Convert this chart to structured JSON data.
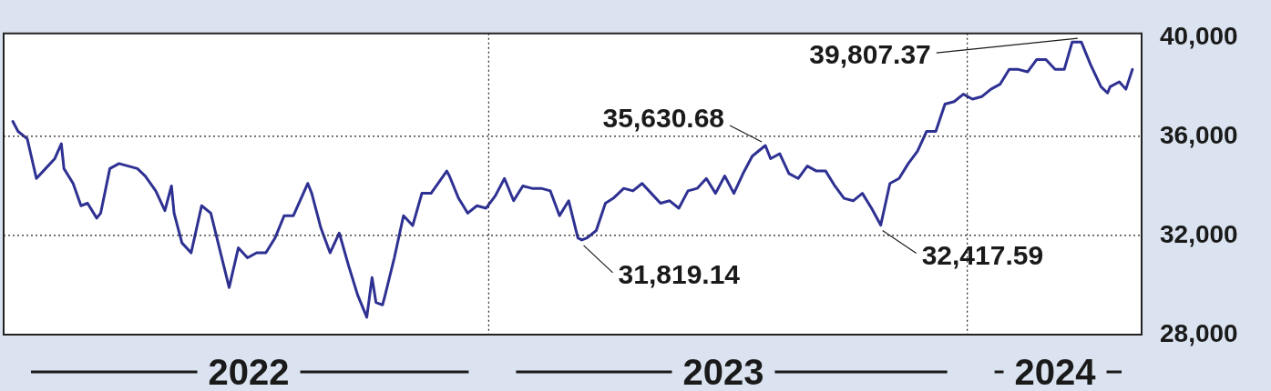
{
  "chart_data": {
    "type": "line",
    "x": [
      "2022-01-03",
      "2022-01-07",
      "2022-01-14",
      "2022-01-21",
      "2022-01-28",
      "2022-02-04",
      "2022-02-09",
      "2022-02-11",
      "2022-02-18",
      "2022-02-24",
      "2022-03-01",
      "2022-03-08",
      "2022-03-11",
      "2022-03-18",
      "2022-03-25",
      "2022-04-01",
      "2022-04-08",
      "2022-04-14",
      "2022-04-22",
      "2022-04-29",
      "2022-05-04",
      "2022-05-06",
      "2022-05-12",
      "2022-05-19",
      "2022-05-27",
      "2022-06-03",
      "2022-06-10",
      "2022-06-17",
      "2022-06-24",
      "2022-07-01",
      "2022-07-08",
      "2022-07-15",
      "2022-07-22",
      "2022-07-29",
      "2022-08-05",
      "2022-08-16",
      "2022-08-19",
      "2022-08-26",
      "2022-09-02",
      "2022-09-09",
      "2022-09-16",
      "2022-09-23",
      "2022-09-30",
      "2022-10-04",
      "2022-10-07",
      "2022-10-12",
      "2022-10-14",
      "2022-10-21",
      "2022-10-28",
      "2022-11-04",
      "2022-11-11",
      "2022-11-18",
      "2022-11-30",
      "2022-12-02",
      "2022-12-09",
      "2022-12-16",
      "2022-12-23",
      "2022-12-30",
      "2023-01-06",
      "2023-01-13",
      "2023-01-20",
      "2023-01-27",
      "2023-02-03",
      "2023-02-10",
      "2023-02-17",
      "2023-02-24",
      "2023-03-03",
      "2023-03-10",
      "2023-03-13",
      "2023-03-17",
      "2023-03-24",
      "2023-03-31",
      "2023-04-06",
      "2023-04-14",
      "2023-04-21",
      "2023-04-28",
      "2023-05-05",
      "2023-05-12",
      "2023-05-19",
      "2023-05-26",
      "2023-06-02",
      "2023-06-09",
      "2023-06-16",
      "2023-06-23",
      "2023-06-30",
      "2023-07-07",
      "2023-07-14",
      "2023-07-21",
      "2023-07-31",
      "2023-08-04",
      "2023-08-11",
      "2023-08-18",
      "2023-08-25",
      "2023-09-01",
      "2023-09-08",
      "2023-09-15",
      "2023-09-22",
      "2023-09-29",
      "2023-10-06",
      "2023-10-13",
      "2023-10-20",
      "2023-10-27",
      "2023-11-03",
      "2023-11-10",
      "2023-11-17",
      "2023-11-24",
      "2023-12-01",
      "2023-12-08",
      "2023-12-15",
      "2023-12-22",
      "2023-12-29",
      "2024-01-05",
      "2024-01-12",
      "2024-01-19",
      "2024-01-26",
      "2024-02-02",
      "2024-02-09",
      "2024-02-16",
      "2024-02-23",
      "2024-03-01",
      "2024-03-08",
      "2024-03-15",
      "2024-03-21",
      "2024-03-28",
      "2024-04-04",
      "2024-04-12",
      "2024-04-17",
      "2024-04-19",
      "2024-04-26",
      "2024-05-01",
      "2024-05-06"
    ],
    "series": [
      {
        "color": "#2e3192",
        "values": [
          36600,
          36200,
          35900,
          34300,
          34700,
          35100,
          35700,
          34700,
          34100,
          33200,
          33300,
          32700,
          32900,
          34700,
          34900,
          34800,
          34700,
          34400,
          33800,
          33000,
          34000,
          32900,
          31700,
          31300,
          33200,
          32900,
          31400,
          29900,
          31500,
          31100,
          31300,
          31300,
          31900,
          32800,
          32800,
          34100,
          33700,
          32300,
          31300,
          32100,
          30800,
          29600,
          28700,
          30300,
          29300,
          29200,
          29600,
          31100,
          32800,
          32400,
          33700,
          33700,
          34600,
          34400,
          33500,
          32900,
          33200,
          33100,
          33600,
          34300,
          33400,
          34000,
          33900,
          33900,
          33800,
          32800,
          33400,
          31900,
          31819.14,
          31900,
          32200,
          33300,
          33500,
          33900,
          33800,
          34100,
          33700,
          33300,
          33400,
          33100,
          33800,
          33900,
          34300,
          33700,
          34400,
          33700,
          34500,
          35200,
          35630.68,
          35100,
          35300,
          34500,
          34300,
          34800,
          34600,
          34600,
          34000,
          33500,
          33400,
          33700,
          33100,
          32417.59,
          34100,
          34300,
          34900,
          35400,
          36200,
          36200,
          37300,
          37400,
          37700,
          37500,
          37600,
          37900,
          38100,
          38700,
          38700,
          38600,
          39100,
          39100,
          38700,
          38700,
          39800,
          39807.37,
          38900,
          38000,
          37750,
          38000,
          38200,
          37900,
          38700
        ]
      }
    ],
    "xlim": [
      "2021-12-27",
      "2024-05-13"
    ],
    "xticks": [
      {
        "value": "2022-07-02",
        "label": "2022"
      },
      {
        "value": "2023-01-01",
        "label": null
      },
      {
        "value": "2023-06-29",
        "label": "2023"
      },
      {
        "value": "2024-01-01",
        "label": null
      },
      {
        "value": "2024-03-08",
        "label": "2024"
      }
    ],
    "ylim": [
      28000,
      40150
    ],
    "yticks": [
      {
        "value": 28000,
        "label": "28,000"
      },
      {
        "value": 32000,
        "label": "32,000"
      },
      {
        "value": 36000,
        "label": "36,000"
      },
      {
        "value": 40000,
        "label": "40,000"
      }
    ],
    "grid": true,
    "legend": false,
    "marker": "none",
    "line_style": "solid",
    "annotations": [
      {
        "text": "39,807.37",
        "x": "2024-03-28",
        "y": 39807.37
      },
      {
        "text": "35,630.68",
        "x": "2023-07-31",
        "y": 35630.68
      },
      {
        "text": "31,819.14",
        "x": "2023-03-13",
        "y": 31819.14
      },
      {
        "text": "32,417.59",
        "x": "2023-10-27",
        "y": 32417.59
      }
    ]
  }
}
